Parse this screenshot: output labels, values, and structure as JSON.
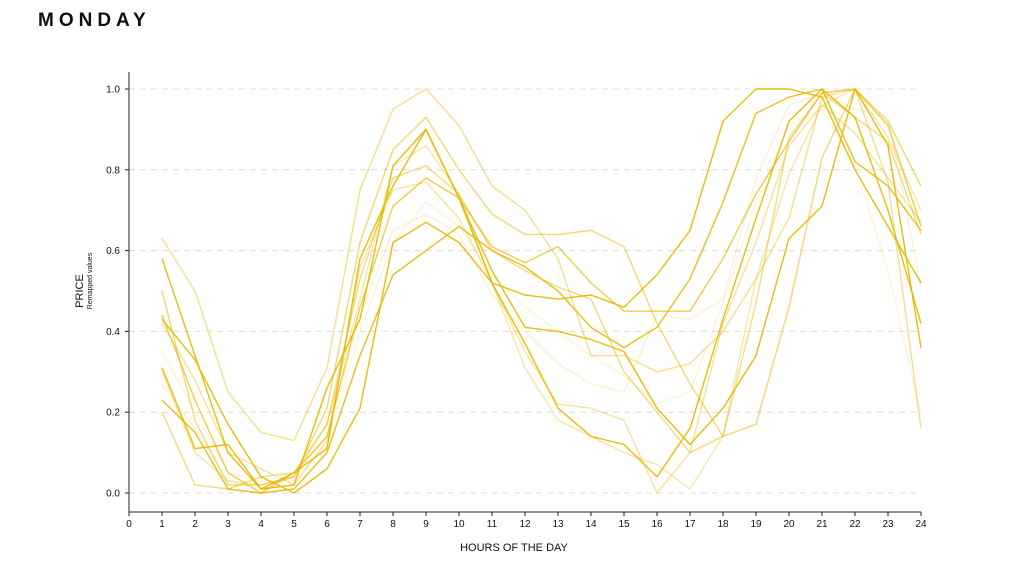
{
  "title": "MONDAY",
  "chart_data": {
    "type": "line",
    "title": "MONDAY",
    "xlabel": "HOURS OF THE DAY",
    "ylabel": "PRICE",
    "ylabel_sub": "Remapped values",
    "xlim": [
      0,
      24
    ],
    "ylim": [
      0,
      1.0
    ],
    "x_ticks": [
      0,
      1,
      2,
      3,
      4,
      5,
      6,
      7,
      8,
      9,
      10,
      11,
      12,
      13,
      14,
      15,
      16,
      17,
      18,
      19,
      20,
      21,
      22,
      23,
      24
    ],
    "y_ticks": [
      0.0,
      0.2,
      0.4,
      0.6,
      0.8,
      1.0
    ],
    "y_tick_labels": [
      "0.0",
      "0.2",
      "0.4",
      "0.6",
      "0.8",
      "1.0"
    ],
    "grid": "horizontal dashed",
    "line_color": "#e8b800",
    "x": [
      1,
      2,
      3,
      4,
      5,
      6,
      7,
      8,
      9,
      10,
      11,
      12,
      13,
      14,
      15,
      16,
      17,
      18,
      19,
      20,
      21,
      22,
      23,
      24
    ],
    "series": [
      {
        "opacity": 0.95,
        "values": [
          0.58,
          0.34,
          0.1,
          0.01,
          0.05,
          0.11,
          0.58,
          0.76,
          0.9,
          0.73,
          0.52,
          0.49,
          0.48,
          0.49,
          0.46,
          0.54,
          0.65,
          0.92,
          1.0,
          1.0,
          0.98,
          0.8,
          0.66,
          0.52
        ]
      },
      {
        "opacity": 0.95,
        "values": [
          0.31,
          0.11,
          0.12,
          0.01,
          0.02,
          0.26,
          0.43,
          0.81,
          0.9,
          0.73,
          0.55,
          0.41,
          0.4,
          0.38,
          0.35,
          0.21,
          0.12,
          0.21,
          0.34,
          0.63,
          0.71,
          1.0,
          0.86,
          0.36
        ]
      },
      {
        "opacity": 0.95,
        "values": [
          0.43,
          0.33,
          0.17,
          0.04,
          0.0,
          0.06,
          0.21,
          0.62,
          0.67,
          0.62,
          0.52,
          0.37,
          0.21,
          0.14,
          0.12,
          0.04,
          0.16,
          0.43,
          0.68,
          0.92,
          1.0,
          0.93,
          0.7,
          0.42
        ]
      },
      {
        "opacity": 0.9,
        "values": [
          0.23,
          0.15,
          0.01,
          0.0,
          0.01,
          0.1,
          0.34,
          0.54,
          0.6,
          0.66,
          0.6,
          0.56,
          0.5,
          0.41,
          0.36,
          0.41,
          0.53,
          0.72,
          0.94,
          0.98,
          1.0,
          0.82,
          0.76,
          0.65
        ]
      },
      {
        "opacity": 0.7,
        "values": [
          0.44,
          0.23,
          0.05,
          0.0,
          0.05,
          0.14,
          0.46,
          0.71,
          0.78,
          0.73,
          0.61,
          0.57,
          0.61,
          0.52,
          0.45,
          0.45,
          0.45,
          0.58,
          0.74,
          0.87,
          0.99,
          1.0,
          0.91,
          0.66
        ]
      },
      {
        "opacity": 0.55,
        "values": [
          0.5,
          0.18,
          0.02,
          0.02,
          0.04,
          0.21,
          0.62,
          0.85,
          0.93,
          0.8,
          0.69,
          0.64,
          0.64,
          0.65,
          0.61,
          0.42,
          0.27,
          0.14,
          0.17,
          0.46,
          0.83,
          1.0,
          0.92,
          0.76
        ]
      },
      {
        "opacity": 0.5,
        "values": [
          0.2,
          0.02,
          0.01,
          0.04,
          0.05,
          0.17,
          0.53,
          0.78,
          0.81,
          0.74,
          0.6,
          0.55,
          0.51,
          0.48,
          0.3,
          0.2,
          0.1,
          0.14,
          0.47,
          0.88,
          0.99,
          0.93,
          0.87,
          0.64
        ]
      },
      {
        "opacity": 0.45,
        "values": [
          0.63,
          0.5,
          0.25,
          0.15,
          0.13,
          0.31,
          0.75,
          0.95,
          1.0,
          0.91,
          0.76,
          0.7,
          0.58,
          0.34,
          0.34,
          0.3,
          0.32,
          0.4,
          0.53,
          0.68,
          0.98,
          1.0,
          0.77,
          0.16
        ]
      },
      {
        "opacity": 0.4,
        "values": [
          0.42,
          0.28,
          0.1,
          0.06,
          0.02,
          0.13,
          0.56,
          0.75,
          0.77,
          0.68,
          0.52,
          0.35,
          0.22,
          0.21,
          0.18,
          0.0,
          0.1,
          0.42,
          0.62,
          0.86,
          0.96,
          0.89,
          0.78,
          0.67
        ]
      },
      {
        "opacity": 0.35,
        "values": [
          0.3,
          0.1,
          0.03,
          0.02,
          0.04,
          0.17,
          0.48,
          0.81,
          0.86,
          0.74,
          0.52,
          0.31,
          0.18,
          0.14,
          0.1,
          0.07,
          0.01,
          0.14,
          0.53,
          0.79,
          0.96,
          1.0,
          0.88,
          0.7
        ]
      },
      {
        "opacity": 0.18,
        "values": [
          0.27,
          0.16,
          0.03,
          0.01,
          0.04,
          0.14,
          0.44,
          0.65,
          0.69,
          0.64,
          0.49,
          0.4,
          0.32,
          0.27,
          0.25,
          0.44,
          0.43,
          0.48,
          0.78,
          0.96,
          0.99,
          0.95,
          0.93,
          0.51
        ]
      },
      {
        "opacity": 0.15,
        "values": [
          0.35,
          0.2,
          0.05,
          0.03,
          0.03,
          0.12,
          0.4,
          0.62,
          0.72,
          0.66,
          0.54,
          0.46,
          0.4,
          0.34,
          0.29,
          0.22,
          0.25,
          0.47,
          0.72,
          0.91,
          0.95,
          0.81,
          0.55,
          0.19
        ]
      }
    ]
  }
}
